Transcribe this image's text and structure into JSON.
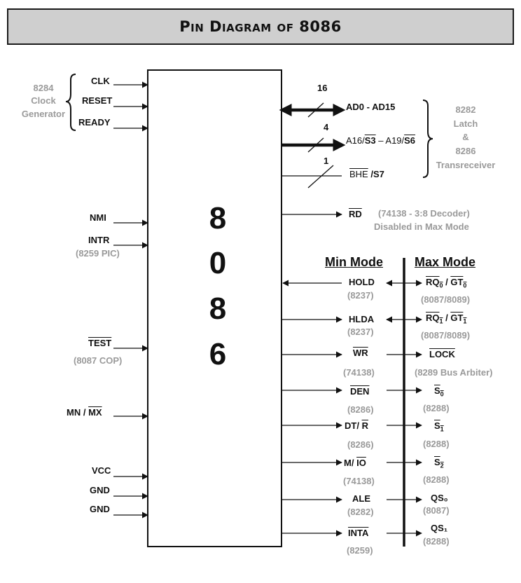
{
  "title": "Pin Diagram of 8086",
  "chip_digits": [
    "8",
    "0",
    "8",
    "6"
  ],
  "left_pins": {
    "clk": "CLK",
    "reset": "RESET",
    "ready": "READY",
    "nmi": "NMI",
    "intr": "INTR",
    "intr_note": "(8259 PIC)",
    "test": "TEST",
    "test_note": "(8087 COP)",
    "mn": "MN /",
    "mx": "MX",
    "vcc": "VCC",
    "gnd1": "GND",
    "gnd2": "GND"
  },
  "clock_gen": {
    "line1": "8284",
    "line2": "Clock",
    "line3": "Generator"
  },
  "bus": {
    "ad_width": "16",
    "ad": "AD0 - AD15",
    "a_width": "4",
    "a16": "A16/",
    "s3": "S3",
    "dash": " – A19/",
    "s6": "S6",
    "bhe_width": "1",
    "bhe": "BHE",
    "s7": "/S7"
  },
  "latch": {
    "line1": "8282",
    "line2": "Latch",
    "line3": "&",
    "line4": "8286",
    "line5": "Transreceiver"
  },
  "rd": {
    "label": "RD",
    "note1": "(74138 - 3:8 Decoder)",
    "note2": "Disabled in Max Mode"
  },
  "headers": {
    "min": "Min Mode",
    "max": "Max Mode"
  },
  "min_mode": {
    "hold": "HOLD",
    "hold_note": "(8237)",
    "hlda": "HLDA",
    "hlda_note": "(8237)",
    "wr": "WR",
    "wr_note": "(74138)",
    "den": "DEN",
    "den_note": "(8286)",
    "dt": "DT/",
    "dt_r": "R",
    "dt_note": "(8286)",
    "m": "M/",
    "io": "IO",
    "mio_note": "(74138)",
    "ale": "ALE",
    "ale_note": "(8282)",
    "inta": "INTA",
    "inta_note": "(8259)"
  },
  "max_mode": {
    "rq": "RQ",
    "rq0_sub": "0",
    "slash": " / ",
    "gt": "GT",
    "gt0_sub": "0",
    "rq0_note": "(8087/8089)",
    "rq1_sub": "1",
    "gt1_sub": "1",
    "rq1_note": "(8087/8089)",
    "lock": "LOCK",
    "lock_note": "(8289 Bus Arbiter)",
    "s": "S",
    "s0_sub": "0",
    "s0_note": "(8288)",
    "s1_sub": "1",
    "s1_note": "(8288)",
    "s2_sub": "2",
    "s2_note": "(8288)",
    "qs0": "QS₀",
    "qs0_note": "(8087)",
    "qs1": "QS₁",
    "qs1_note": "(8288)"
  },
  "colors": {
    "ink": "#111111",
    "note_gray": "#9a9a9a",
    "title_bg": "#cfcfcf"
  }
}
